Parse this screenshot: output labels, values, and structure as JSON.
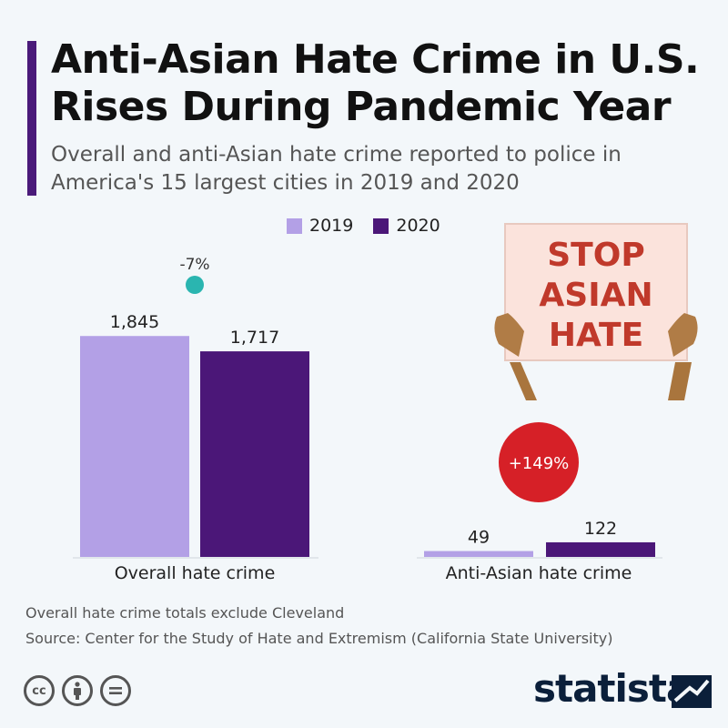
{
  "title_line1": "Anti-Asian Hate Crime in U.S.",
  "title_line2": "Rises During Pandemic Year",
  "subtitle_line1": "Overall and anti-Asian hate crime reported to police in",
  "subtitle_line2": "America's 15 largest cities in 2019 and 2020",
  "sign_text": [
    "STOP",
    "ASIAN",
    "HATE"
  ],
  "footnote": "Overall hate crime totals exclude Cleveland",
  "source": "Source: Center for the Study of Hate and Extremism (California State University)",
  "brand": "statista",
  "colors": {
    "2019": "#b3a0e6",
    "2020": "#4b1778",
    "change_down": "#2ab5b0",
    "change_up": "#d62027",
    "sign_bg": "#fbe3dc",
    "sign_text": "#c0392b"
  },
  "chart_data": [
    {
      "type": "bar",
      "categories": [
        "Overall hate crime"
      ],
      "series": [
        {
          "name": "2019",
          "values": [
            1845
          ]
        },
        {
          "name": "2020",
          "values": [
            1717
          ]
        }
      ],
      "data_labels": [
        "1,845",
        "1,717"
      ],
      "change_label": "-7%",
      "ylim": [
        0,
        1900
      ],
      "legend_position": "top"
    },
    {
      "type": "bar",
      "categories": [
        "Anti-Asian hate crime"
      ],
      "series": [
        {
          "name": "2019",
          "values": [
            49
          ]
        },
        {
          "name": "2020",
          "values": [
            122
          ]
        }
      ],
      "data_labels": [
        "49",
        "122"
      ],
      "change_label": "+149%",
      "ylim": [
        0,
        1900
      ]
    }
  ]
}
